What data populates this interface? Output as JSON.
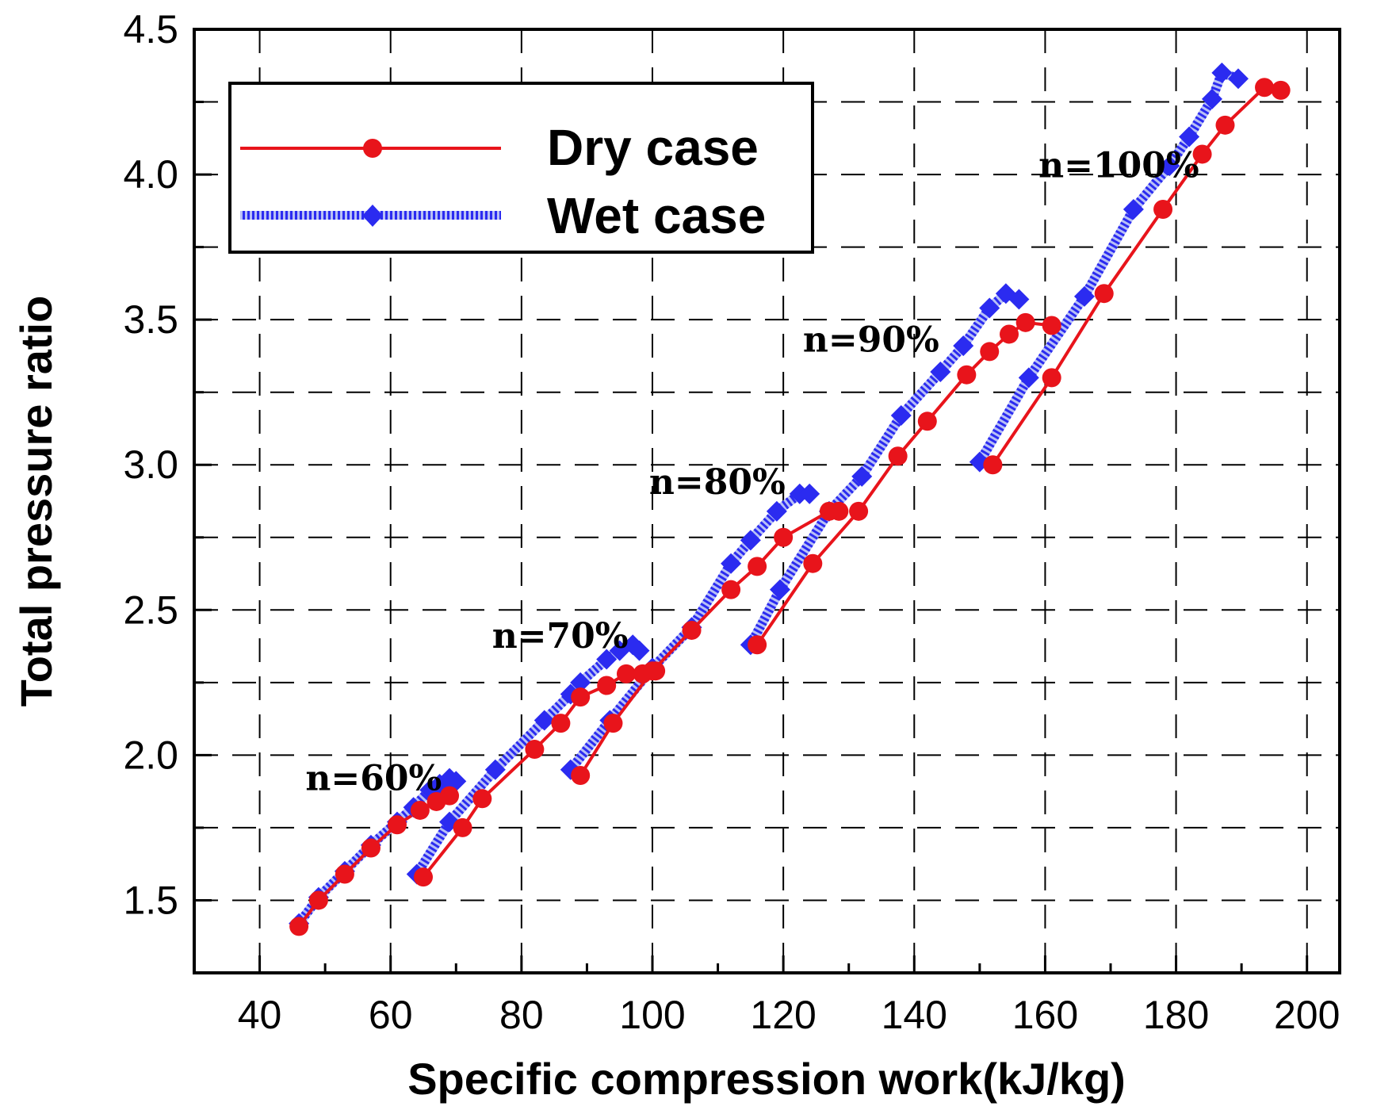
{
  "chart_data": {
    "type": "line",
    "title": "",
    "xlabel": "Specific compression work(kJ/kg)",
    "ylabel": "Total pressure ratio",
    "xlim": [
      30,
      205
    ],
    "ylim": [
      1.25,
      4.5
    ],
    "xticks": [
      40,
      60,
      80,
      100,
      120,
      140,
      160,
      180,
      200
    ],
    "xtick_labels": [
      "40",
      "60",
      "80",
      "100",
      "120",
      "140",
      "160",
      "180",
      "200"
    ],
    "yticks": [
      1.5,
      2.0,
      2.5,
      3.0,
      3.5,
      4.0,
      4.5
    ],
    "ytick_labels": [
      "1.5",
      "2.0",
      "2.5",
      "3.0",
      "3.5",
      "4.0",
      "4.5"
    ],
    "grid": true,
    "legend": {
      "position": "top-left",
      "entries": [
        "Dry case",
        "Wet case"
      ]
    },
    "colors": {
      "dry": "#e8141b",
      "wet": "#2b2bf0"
    },
    "series": [
      {
        "name": "Dry case",
        "style": "solid",
        "marker": "circle",
        "segments": [
          {
            "x": [
              46,
              49,
              53,
              57,
              61,
              64.5,
              67,
              69
            ],
            "y": [
              1.41,
              1.5,
              1.59,
              1.68,
              1.76,
              1.81,
              1.84,
              1.86
            ]
          },
          {
            "x": [
              65,
              71,
              74,
              82,
              86,
              89,
              93,
              96,
              98.5,
              100.5
            ],
            "y": [
              1.58,
              1.75,
              1.85,
              2.02,
              2.11,
              2.2,
              2.24,
              2.28,
              2.28,
              2.29
            ]
          },
          {
            "x": [
              89,
              94,
              100,
              106,
              112,
              116,
              120,
              127,
              128.5
            ],
            "y": [
              1.93,
              2.11,
              2.29,
              2.43,
              2.57,
              2.65,
              2.75,
              2.84,
              2.84
            ]
          },
          {
            "x": [
              116,
              124.5,
              131.5,
              137.5,
              142,
              148,
              151.5,
              154.5,
              157,
              161
            ],
            "y": [
              2.38,
              2.66,
              2.84,
              3.03,
              3.15,
              3.31,
              3.39,
              3.45,
              3.49,
              3.48
            ]
          },
          {
            "x": [
              152,
              161,
              169,
              178,
              184,
              187.5,
              193.5,
              196
            ],
            "y": [
              3.0,
              3.3,
              3.59,
              3.88,
              4.07,
              4.17,
              4.3,
              4.29
            ]
          }
        ]
      },
      {
        "name": "Wet case",
        "style": "hatched",
        "marker": "diamond",
        "segments": [
          {
            "x": [
              46,
              49,
              53,
              57,
              61,
              63.5,
              66,
              67.5,
              69,
              70
            ],
            "y": [
              1.42,
              1.51,
              1.6,
              1.69,
              1.77,
              1.82,
              1.88,
              1.9,
              1.92,
              1.91
            ]
          },
          {
            "x": [
              64,
              69,
              76,
              83.5,
              87.5,
              89,
              93,
              95,
              97,
              98
            ],
            "y": [
              1.59,
              1.77,
              1.95,
              2.12,
              2.21,
              2.25,
              2.33,
              2.36,
              2.38,
              2.36
            ]
          },
          {
            "x": [
              87.5,
              93.5,
              100,
              106,
              112,
              115,
              119,
              122.5,
              124
            ],
            "y": [
              1.95,
              2.12,
              2.3,
              2.44,
              2.66,
              2.74,
              2.84,
              2.9,
              2.9
            ]
          },
          {
            "x": [
              115,
              119.5,
              127,
              132,
              138,
              144,
              147.5,
              151.5,
              154,
              156
            ],
            "y": [
              2.38,
              2.57,
              2.84,
              2.96,
              3.17,
              3.32,
              3.41,
              3.54,
              3.59,
              3.57
            ]
          },
          {
            "x": [
              150,
              157.5,
              166,
              173.5,
              179,
              182,
              185.5,
              187,
              189.5
            ],
            "y": [
              3.01,
              3.3,
              3.58,
              3.88,
              4.03,
              4.13,
              4.26,
              4.35,
              4.33
            ]
          }
        ]
      }
    ],
    "annotations": [
      {
        "text": "n=60%",
        "x": 47,
        "y": 1.88
      },
      {
        "text": "n=70%",
        "x": 75.5,
        "y": 2.37
      },
      {
        "text": "n=80%",
        "x": 99.5,
        "y": 2.9
      },
      {
        "text": "n=90%",
        "x": 123,
        "y": 3.39
      },
      {
        "text": "n=100%",
        "x": 159,
        "y": 3.99
      }
    ]
  }
}
